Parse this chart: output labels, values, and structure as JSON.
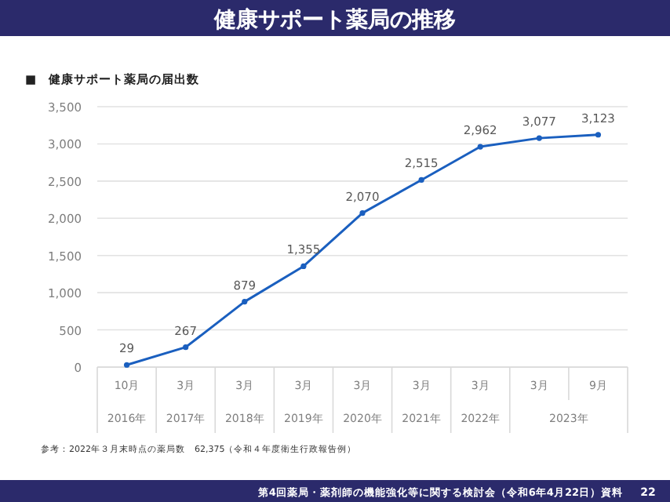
{
  "chart_data": {
    "type": "line",
    "title": "健康サポート薬局の推移",
    "subtitle": "■　健康サポート薬局の届出数",
    "categories": [
      "10月",
      "3月",
      "3月",
      "3月",
      "3月",
      "3月",
      "3月",
      "3月",
      "9月"
    ],
    "series": [
      {
        "color": "#1a5fbf",
        "values": [
          29,
          267,
          879,
          1355,
          2070,
          2515,
          2962,
          3077,
          3123
        ],
        "value_labels": [
          "29",
          "267",
          "879",
          "1,355",
          "2,070",
          "2,515",
          "2,962",
          "3,077",
          "3,123"
        ]
      }
    ],
    "ylim": [
      0,
      3500
    ],
    "yticks": [
      {
        "value": 0,
        "label": "0"
      },
      {
        "value": 500,
        "label": "500"
      },
      {
        "value": 1000,
        "label": "1,000"
      },
      {
        "value": 1500,
        "label": "1,500"
      },
      {
        "value": 2000,
        "label": "2,000"
      },
      {
        "value": 2500,
        "label": "2,500"
      },
      {
        "value": 3000,
        "label": "3,000"
      },
      {
        "value": 3500,
        "label": "3,500"
      }
    ],
    "grid": "y",
    "marker": "circle",
    "line_style": "solid",
    "annotations": [
      "2016年",
      "2017年",
      "2018年",
      "2019年",
      "2020年",
      "2021年",
      "2022年",
      "2023年",
      "参考：2022年３月末時点の薬局数　62,375（令和４年度衛生行政報告例）",
      "第4回薬局・薬剤師の機能強化等に関する検討会（令和6年4月22日）資料",
      "22"
    ]
  }
}
